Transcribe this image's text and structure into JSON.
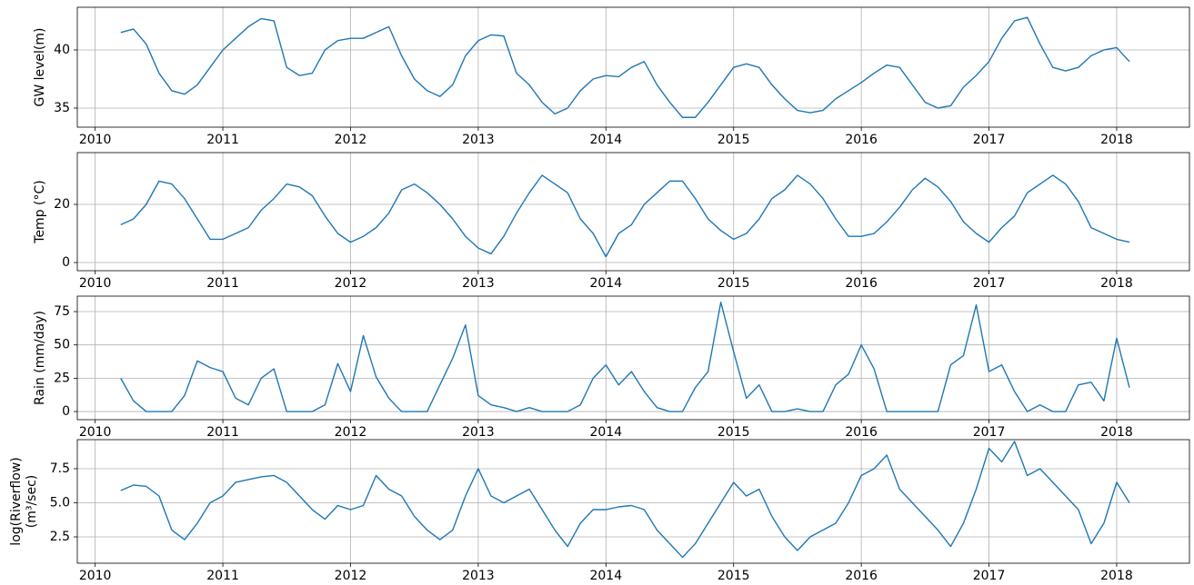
{
  "chart_data": [
    {
      "type": "line",
      "y_label": "GW level(m)",
      "color": "#1f77b4",
      "grid": true,
      "xlim": [
        2009.86,
        2018.57
      ],
      "xticks": [
        2010,
        2011,
        2012,
        2013,
        2014,
        2015,
        2016,
        2017,
        2018
      ],
      "ylim": [
        33.36,
        43.67
      ],
      "yticks": [
        35,
        40
      ],
      "x": [
        2010.2,
        2010.3,
        2010.4,
        2010.5,
        2010.6,
        2010.7,
        2010.8,
        2010.9,
        2011.0,
        2011.1,
        2011.2,
        2011.3,
        2011.4,
        2011.5,
        2011.6,
        2011.7,
        2011.8,
        2011.9,
        2012.0,
        2012.1,
        2012.2,
        2012.3,
        2012.4,
        2012.5,
        2012.6,
        2012.7,
        2012.8,
        2012.9,
        2013.0,
        2013.1,
        2013.2,
        2013.3,
        2013.4,
        2013.5,
        2013.6,
        2013.7,
        2013.8,
        2013.9,
        2014.0,
        2014.1,
        2014.2,
        2014.3,
        2014.4,
        2014.5,
        2014.6,
        2014.7,
        2014.8,
        2014.9,
        2015.0,
        2015.1,
        2015.2,
        2015.3,
        2015.4,
        2015.5,
        2015.6,
        2015.7,
        2015.8,
        2015.9,
        2016.0,
        2016.1,
        2016.2,
        2016.3,
        2016.4,
        2016.5,
        2016.6,
        2016.7,
        2016.8,
        2016.9,
        2017.0,
        2017.1,
        2017.2,
        2017.3,
        2017.4,
        2017.5,
        2017.6,
        2017.7,
        2017.8,
        2017.9,
        2018.0,
        2018.1
      ],
      "values": [
        41.5,
        41.8,
        40.5,
        38,
        36.5,
        36.2,
        37,
        38.5,
        40,
        41,
        42,
        42.7,
        42.5,
        38.5,
        37.8,
        38,
        40,
        40.8,
        41,
        41,
        41.5,
        42,
        39.5,
        37.5,
        36.5,
        36,
        37,
        39.5,
        40.8,
        41.3,
        41.2,
        38,
        37,
        35.5,
        34.5,
        35,
        36.5,
        37.5,
        37.8,
        37.7,
        38.5,
        39,
        37,
        35.5,
        34.2,
        34.2,
        35.5,
        37,
        38.5,
        38.8,
        38.5,
        37,
        35.8,
        34.8,
        34.6,
        34.8,
        35.8,
        36.5,
        37.2,
        38,
        38.7,
        38.5,
        37,
        35.5,
        35,
        35.2,
        36.8,
        37.8,
        39,
        41,
        42.5,
        42.8,
        40.5,
        38.5,
        38.2,
        38.5,
        39.5,
        40,
        40.2,
        39
      ]
    },
    {
      "type": "line",
      "y_label": "Temp (°C)",
      "color": "#1f77b4",
      "grid": true,
      "xlim": [
        2009.86,
        2018.57
      ],
      "xticks": [
        2010,
        2011,
        2012,
        2013,
        2014,
        2015,
        2016,
        2017,
        2018
      ],
      "ylim": [
        -2.8,
        37.8
      ],
      "yticks": [
        0,
        20
      ],
      "x": [
        2010.2,
        2010.3,
        2010.4,
        2010.5,
        2010.6,
        2010.7,
        2010.8,
        2010.9,
        2011.0,
        2011.1,
        2011.2,
        2011.3,
        2011.4,
        2011.5,
        2011.6,
        2011.7,
        2011.8,
        2011.9,
        2012.0,
        2012.1,
        2012.2,
        2012.3,
        2012.4,
        2012.5,
        2012.6,
        2012.7,
        2012.8,
        2012.9,
        2013.0,
        2013.1,
        2013.2,
        2013.3,
        2013.4,
        2013.5,
        2013.6,
        2013.7,
        2013.8,
        2013.9,
        2014.0,
        2014.1,
        2014.2,
        2014.3,
        2014.4,
        2014.5,
        2014.6,
        2014.7,
        2014.8,
        2014.9,
        2015.0,
        2015.1,
        2015.2,
        2015.3,
        2015.4,
        2015.5,
        2015.6,
        2015.7,
        2015.8,
        2015.9,
        2016.0,
        2016.1,
        2016.2,
        2016.3,
        2016.4,
        2016.5,
        2016.6,
        2016.7,
        2016.8,
        2016.9,
        2017.0,
        2017.1,
        2017.2,
        2017.3,
        2017.4,
        2017.5,
        2017.6,
        2017.7,
        2017.8,
        2017.9,
        2018.0,
        2018.1
      ],
      "values": [
        13,
        15,
        20,
        28,
        27,
        22,
        15,
        8,
        8,
        10,
        12,
        18,
        22,
        27,
        26,
        23,
        16,
        10,
        7,
        9,
        12,
        17,
        25,
        27,
        24,
        20,
        15,
        9,
        5,
        3,
        9,
        17,
        24,
        30,
        27,
        24,
        15,
        10,
        2,
        10,
        13,
        20,
        24,
        28,
        28,
        22,
        15,
        11,
        8,
        10,
        15,
        22,
        25,
        30,
        27,
        22,
        15,
        9,
        9,
        10,
        14,
        19,
        25,
        29,
        26,
        21,
        14,
        10,
        7,
        12,
        16,
        24,
        27,
        30,
        27,
        21,
        12,
        10,
        8,
        7
      ]
    },
    {
      "type": "line",
      "y_label": "Rain (mm/day)",
      "color": "#1f77b4",
      "grid": true,
      "xlim": [
        2009.86,
        2018.57
      ],
      "xticks": [
        2010,
        2011,
        2012,
        2013,
        2014,
        2015,
        2016,
        2017,
        2018
      ],
      "ylim": [
        -6.1,
        86.6
      ],
      "yticks": [
        0,
        25,
        50,
        75
      ],
      "x": [
        2010.2,
        2010.3,
        2010.4,
        2010.5,
        2010.6,
        2010.7,
        2010.8,
        2010.9,
        2011.0,
        2011.1,
        2011.2,
        2011.3,
        2011.4,
        2011.5,
        2011.6,
        2011.7,
        2011.8,
        2011.9,
        2012.0,
        2012.1,
        2012.2,
        2012.3,
        2012.4,
        2012.5,
        2012.6,
        2012.7,
        2012.8,
        2012.9,
        2013.0,
        2013.1,
        2013.2,
        2013.3,
        2013.4,
        2013.5,
        2013.6,
        2013.7,
        2013.8,
        2013.9,
        2014.0,
        2014.1,
        2014.2,
        2014.3,
        2014.4,
        2014.5,
        2014.6,
        2014.7,
        2014.8,
        2014.9,
        2015.0,
        2015.1,
        2015.2,
        2015.3,
        2015.4,
        2015.5,
        2015.6,
        2015.7,
        2015.8,
        2015.9,
        2016.0,
        2016.1,
        2016.2,
        2016.3,
        2016.4,
        2016.5,
        2016.6,
        2016.7,
        2016.8,
        2016.9,
        2017.0,
        2017.1,
        2017.2,
        2017.3,
        2017.4,
        2017.5,
        2017.6,
        2017.7,
        2017.8,
        2017.9,
        2018.0,
        2018.1
      ],
      "values": [
        25,
        8,
        0,
        0,
        0,
        12,
        38,
        33,
        30,
        10,
        5,
        25,
        32,
        0,
        0,
        0,
        5,
        36,
        15,
        57,
        26,
        10,
        0,
        0,
        0,
        20,
        40,
        65,
        12,
        5,
        3,
        0,
        3,
        0,
        0,
        0,
        5,
        25,
        35,
        20,
        30,
        15,
        3,
        0,
        0,
        18,
        30,
        82,
        45,
        10,
        20,
        0,
        0,
        2,
        0,
        0,
        20,
        28,
        50,
        32,
        0,
        0,
        0,
        0,
        0,
        35,
        42,
        80,
        30,
        35,
        15,
        0,
        5,
        0,
        0,
        20,
        22,
        8,
        55,
        18
      ]
    },
    {
      "type": "line",
      "y_label": "log(Riverflow)",
      "y_label_2": "(m³/sec)",
      "color": "#1f77b4",
      "grid": true,
      "xlim": [
        2009.86,
        2018.57
      ],
      "xticks": [
        2010,
        2011,
        2012,
        2013,
        2014,
        2015,
        2016,
        2017,
        2018
      ],
      "ylim": [
        0.57,
        9.63
      ],
      "yticks": [
        2.5,
        {
          "value": 5,
          "label": "5.0"
        },
        7.5
      ],
      "x": [
        2010.2,
        2010.3,
        2010.4,
        2010.5,
        2010.6,
        2010.7,
        2010.8,
        2010.9,
        2011.0,
        2011.1,
        2011.2,
        2011.3,
        2011.4,
        2011.5,
        2011.6,
        2011.7,
        2011.8,
        2011.9,
        2012.0,
        2012.1,
        2012.2,
        2012.3,
        2012.4,
        2012.5,
        2012.6,
        2012.7,
        2012.8,
        2012.9,
        2013.0,
        2013.1,
        2013.2,
        2013.3,
        2013.4,
        2013.5,
        2013.6,
        2013.7,
        2013.8,
        2013.9,
        2014.0,
        2014.1,
        2014.2,
        2014.3,
        2014.4,
        2014.5,
        2014.6,
        2014.7,
        2014.8,
        2014.9,
        2015.0,
        2015.1,
        2015.2,
        2015.3,
        2015.4,
        2015.5,
        2015.6,
        2015.7,
        2015.8,
        2015.9,
        2016.0,
        2016.1,
        2016.2,
        2016.3,
        2016.4,
        2016.5,
        2016.6,
        2016.7,
        2016.8,
        2016.9,
        2017.0,
        2017.1,
        2017.2,
        2017.3,
        2017.4,
        2017.5,
        2017.6,
        2017.7,
        2017.8,
        2017.9,
        2018.0,
        2018.1
      ],
      "values": [
        5.9,
        6.3,
        6.2,
        5.5,
        3,
        2.3,
        3.5,
        5,
        5.5,
        6.5,
        6.7,
        6.9,
        7,
        6.5,
        5.5,
        4.5,
        3.8,
        4.8,
        4.5,
        4.8,
        7,
        6,
        5.5,
        4,
        3,
        2.3,
        3,
        5.5,
        7.5,
        5.5,
        5,
        5.5,
        6,
        4.5,
        3,
        1.8,
        3.5,
        4.5,
        4.5,
        4.7,
        4.8,
        4.5,
        3,
        2,
        1,
        2,
        3.5,
        5,
        6.5,
        5.5,
        6,
        4,
        2.5,
        1.5,
        2.5,
        3,
        3.5,
        5,
        7,
        7.5,
        8.5,
        6,
        5,
        4,
        3,
        1.8,
        3.5,
        6,
        9,
        8,
        9.5,
        7,
        7.5,
        6.5,
        5.5,
        4.5,
        2,
        3.5,
        6.5,
        5
      ]
    }
  ]
}
